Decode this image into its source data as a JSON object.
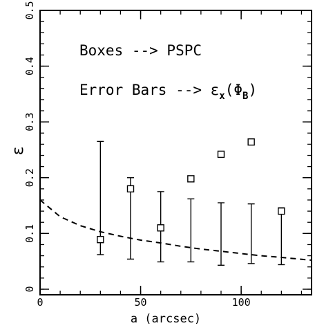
{
  "chart_data": {
    "type": "scatter",
    "xlabel": "a (arcsec)",
    "ylabel": "ε",
    "xlim": [
      0,
      135
    ],
    "ylim": [
      -0.01,
      0.5
    ],
    "x_ticks": [
      0,
      50,
      100
    ],
    "y_ticks": [
      0,
      0.1,
      0.2,
      0.3,
      0.4,
      0.5
    ],
    "x_minor_step": 10,
    "y_minor_step": 0.02,
    "annotations": [
      "Boxes --> PSPC",
      "Error Bars --> εx(ΦB)"
    ],
    "series": [
      {
        "name": "PSPC",
        "marker": "square",
        "points": [
          {
            "x": 30,
            "y": 0.089
          },
          {
            "x": 45,
            "y": 0.18
          },
          {
            "x": 60,
            "y": 0.11
          },
          {
            "x": 75,
            "y": 0.198
          },
          {
            "x": 90,
            "y": 0.242
          },
          {
            "x": 105,
            "y": 0.264
          },
          {
            "x": 120,
            "y": 0.14
          }
        ]
      },
      {
        "name": "εx(ΦB)",
        "marker": "errorbar",
        "points": [
          {
            "x": 30,
            "low": 0.062,
            "high": 0.265
          },
          {
            "x": 45,
            "low": 0.054,
            "high": 0.2
          },
          {
            "x": 60,
            "low": 0.049,
            "high": 0.175
          },
          {
            "x": 75,
            "low": 0.049,
            "high": 0.162
          },
          {
            "x": 90,
            "low": 0.043,
            "high": 0.155
          },
          {
            "x": 105,
            "low": 0.046,
            "high": 0.153
          },
          {
            "x": 120,
            "low": 0.044,
            "high": 0.146
          }
        ]
      },
      {
        "name": "model",
        "style": "dashed",
        "x": [
          0,
          10,
          20,
          30,
          40,
          50,
          60,
          70,
          80,
          90,
          100,
          110,
          120,
          135
        ],
        "y": [
          0.16,
          0.13,
          0.114,
          0.103,
          0.095,
          0.088,
          0.083,
          0.077,
          0.072,
          0.068,
          0.064,
          0.06,
          0.057,
          0.052
        ]
      }
    ]
  }
}
